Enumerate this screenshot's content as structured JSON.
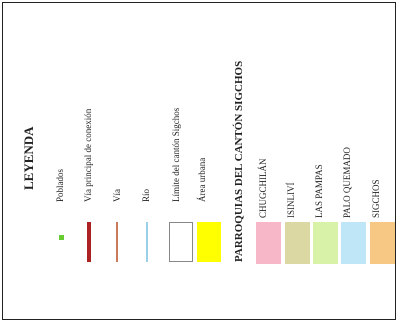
{
  "legend": {
    "title": "LEYENDA",
    "items": [
      {
        "label": "Poblados",
        "symbol": "point",
        "color": "#66cc33"
      },
      {
        "label": "Vía principal de conexión",
        "symbol": "line",
        "color": "#aa2222"
      },
      {
        "label": "Vía",
        "symbol": "line",
        "color": "#c87a5a"
      },
      {
        "label": "Río",
        "symbol": "line",
        "color": "#9ccfe8"
      },
      {
        "label": "Límite del cantón Sigchos",
        "symbol": "polygon",
        "color": "#ffffff"
      },
      {
        "label": "Área urbana",
        "symbol": "polygon",
        "color": "#ffff00"
      }
    ]
  },
  "parishes": {
    "title": "PARROQUIAS DEL CANTÓN SIGCHOS",
    "items": [
      {
        "label": "CHUGCHILÁN",
        "color": "#f7b7c8"
      },
      {
        "label": "ISINLIVÍ",
        "color": "#dcd8a4"
      },
      {
        "label": "LAS PAMPAS",
        "color": "#d8f2a8"
      },
      {
        "label": "PALO QUEMADO",
        "color": "#bfe6f7"
      },
      {
        "label": "SIGCHOS",
        "color": "#f7c784"
      }
    ]
  }
}
